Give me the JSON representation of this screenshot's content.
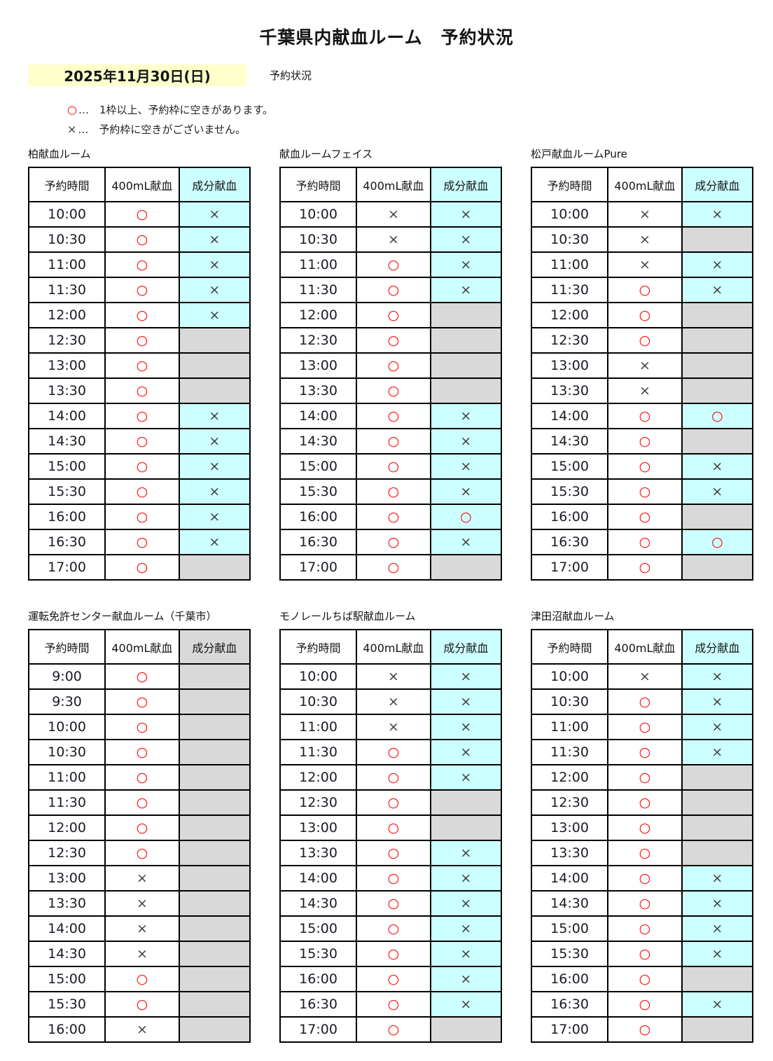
{
  "title": "千葉県内献血ルーム　予約状況",
  "date": {
    "value": "2025年11月30日(日)",
    "suffix_label": "予約状況"
  },
  "legend": [
    {
      "symbol": "○",
      "text": "…　1枠以上、予約枠に空きがあります。"
    },
    {
      "symbol": "×",
      "text": "…　予約枠に空きがございません。"
    }
  ],
  "table_columns": [
    "予約時間",
    "400mL献血",
    "成分献血"
  ],
  "symbols": {
    "circle": "○",
    "cross": "×",
    "none": ""
  },
  "colors": {
    "available_circle": "#ff0000",
    "unavailable_cross": "#404040",
    "component_active_bg": "#ccffff",
    "inactive_bg": "#d9d9d9",
    "date_highlight_bg": "#ffffcc",
    "border": "#000000"
  },
  "rooms": [
    {
      "name": "柏献血ルーム",
      "component_offered": true,
      "rows": [
        [
          "10:00",
          "circle",
          "cross"
        ],
        [
          "10:30",
          "circle",
          "cross"
        ],
        [
          "11:00",
          "circle",
          "cross"
        ],
        [
          "11:30",
          "circle",
          "cross"
        ],
        [
          "12:00",
          "circle",
          "cross"
        ],
        [
          "12:30",
          "circle",
          "none"
        ],
        [
          "13:00",
          "circle",
          "none"
        ],
        [
          "13:30",
          "circle",
          "none"
        ],
        [
          "14:00",
          "circle",
          "cross"
        ],
        [
          "14:30",
          "circle",
          "cross"
        ],
        [
          "15:00",
          "circle",
          "cross"
        ],
        [
          "15:30",
          "circle",
          "cross"
        ],
        [
          "16:00",
          "circle",
          "cross"
        ],
        [
          "16:30",
          "circle",
          "cross"
        ],
        [
          "17:00",
          "circle",
          "none"
        ]
      ]
    },
    {
      "name": "献血ルームフェイス",
      "component_offered": true,
      "rows": [
        [
          "10:00",
          "cross",
          "cross"
        ],
        [
          "10:30",
          "cross",
          "cross"
        ],
        [
          "11:00",
          "circle",
          "cross"
        ],
        [
          "11:30",
          "circle",
          "cross"
        ],
        [
          "12:00",
          "circle",
          "none"
        ],
        [
          "12:30",
          "circle",
          "none"
        ],
        [
          "13:00",
          "circle",
          "none"
        ],
        [
          "13:30",
          "circle",
          "none"
        ],
        [
          "14:00",
          "circle",
          "cross"
        ],
        [
          "14:30",
          "circle",
          "cross"
        ],
        [
          "15:00",
          "circle",
          "cross"
        ],
        [
          "15:30",
          "circle",
          "cross"
        ],
        [
          "16:00",
          "circle",
          "circle"
        ],
        [
          "16:30",
          "circle",
          "cross"
        ],
        [
          "17:00",
          "circle",
          "none"
        ]
      ]
    },
    {
      "name": "松戸献血ルームPure",
      "component_offered": true,
      "rows": [
        [
          "10:00",
          "cross",
          "cross"
        ],
        [
          "10:30",
          "cross",
          "none"
        ],
        [
          "11:00",
          "cross",
          "cross"
        ],
        [
          "11:30",
          "circle",
          "cross"
        ],
        [
          "12:00",
          "circle",
          "none"
        ],
        [
          "12:30",
          "circle",
          "none"
        ],
        [
          "13:00",
          "cross",
          "none"
        ],
        [
          "13:30",
          "cross",
          "none"
        ],
        [
          "14:00",
          "circle",
          "circle"
        ],
        [
          "14:30",
          "circle",
          "none"
        ],
        [
          "15:00",
          "circle",
          "cross"
        ],
        [
          "15:30",
          "circle",
          "cross"
        ],
        [
          "16:00",
          "circle",
          "none"
        ],
        [
          "16:30",
          "circle",
          "circle"
        ],
        [
          "17:00",
          "circle",
          "none"
        ]
      ]
    },
    {
      "name": "運転免許センター献血ルーム（千葉市）",
      "component_offered": false,
      "rows": [
        [
          "9:00",
          "circle",
          "none"
        ],
        [
          "9:30",
          "circle",
          "none"
        ],
        [
          "10:00",
          "circle",
          "none"
        ],
        [
          "10:30",
          "circle",
          "none"
        ],
        [
          "11:00",
          "circle",
          "none"
        ],
        [
          "11:30",
          "circle",
          "none"
        ],
        [
          "12:00",
          "circle",
          "none"
        ],
        [
          "12:30",
          "circle",
          "none"
        ],
        [
          "13:00",
          "cross",
          "none"
        ],
        [
          "13:30",
          "cross",
          "none"
        ],
        [
          "14:00",
          "cross",
          "none"
        ],
        [
          "14:30",
          "cross",
          "none"
        ],
        [
          "15:00",
          "circle",
          "none"
        ],
        [
          "15:30",
          "circle",
          "none"
        ],
        [
          "16:00",
          "cross",
          "none"
        ]
      ]
    },
    {
      "name": "モノレールちば駅献血ルーム",
      "component_offered": true,
      "rows": [
        [
          "10:00",
          "cross",
          "cross"
        ],
        [
          "10:30",
          "cross",
          "cross"
        ],
        [
          "11:00",
          "cross",
          "cross"
        ],
        [
          "11:30",
          "circle",
          "cross"
        ],
        [
          "12:00",
          "circle",
          "cross"
        ],
        [
          "12:30",
          "circle",
          "none"
        ],
        [
          "13:00",
          "circle",
          "none"
        ],
        [
          "13:30",
          "circle",
          "cross"
        ],
        [
          "14:00",
          "circle",
          "cross"
        ],
        [
          "14:30",
          "circle",
          "cross"
        ],
        [
          "15:00",
          "circle",
          "cross"
        ],
        [
          "15:30",
          "circle",
          "cross"
        ],
        [
          "16:00",
          "circle",
          "cross"
        ],
        [
          "16:30",
          "circle",
          "cross"
        ],
        [
          "17:00",
          "circle",
          "none"
        ]
      ]
    },
    {
      "name": "津田沼献血ルーム",
      "component_offered": true,
      "rows": [
        [
          "10:00",
          "cross",
          "cross"
        ],
        [
          "10:30",
          "circle",
          "cross"
        ],
        [
          "11:00",
          "circle",
          "cross"
        ],
        [
          "11:30",
          "circle",
          "cross"
        ],
        [
          "12:00",
          "circle",
          "none"
        ],
        [
          "12:30",
          "circle",
          "none"
        ],
        [
          "13:00",
          "circle",
          "none"
        ],
        [
          "13:30",
          "circle",
          "none"
        ],
        [
          "14:00",
          "circle",
          "cross"
        ],
        [
          "14:30",
          "circle",
          "cross"
        ],
        [
          "15:00",
          "circle",
          "cross"
        ],
        [
          "15:30",
          "circle",
          "cross"
        ],
        [
          "16:00",
          "circle",
          "none"
        ],
        [
          "16:30",
          "circle",
          "cross"
        ],
        [
          "17:00",
          "circle",
          "none"
        ]
      ]
    }
  ]
}
